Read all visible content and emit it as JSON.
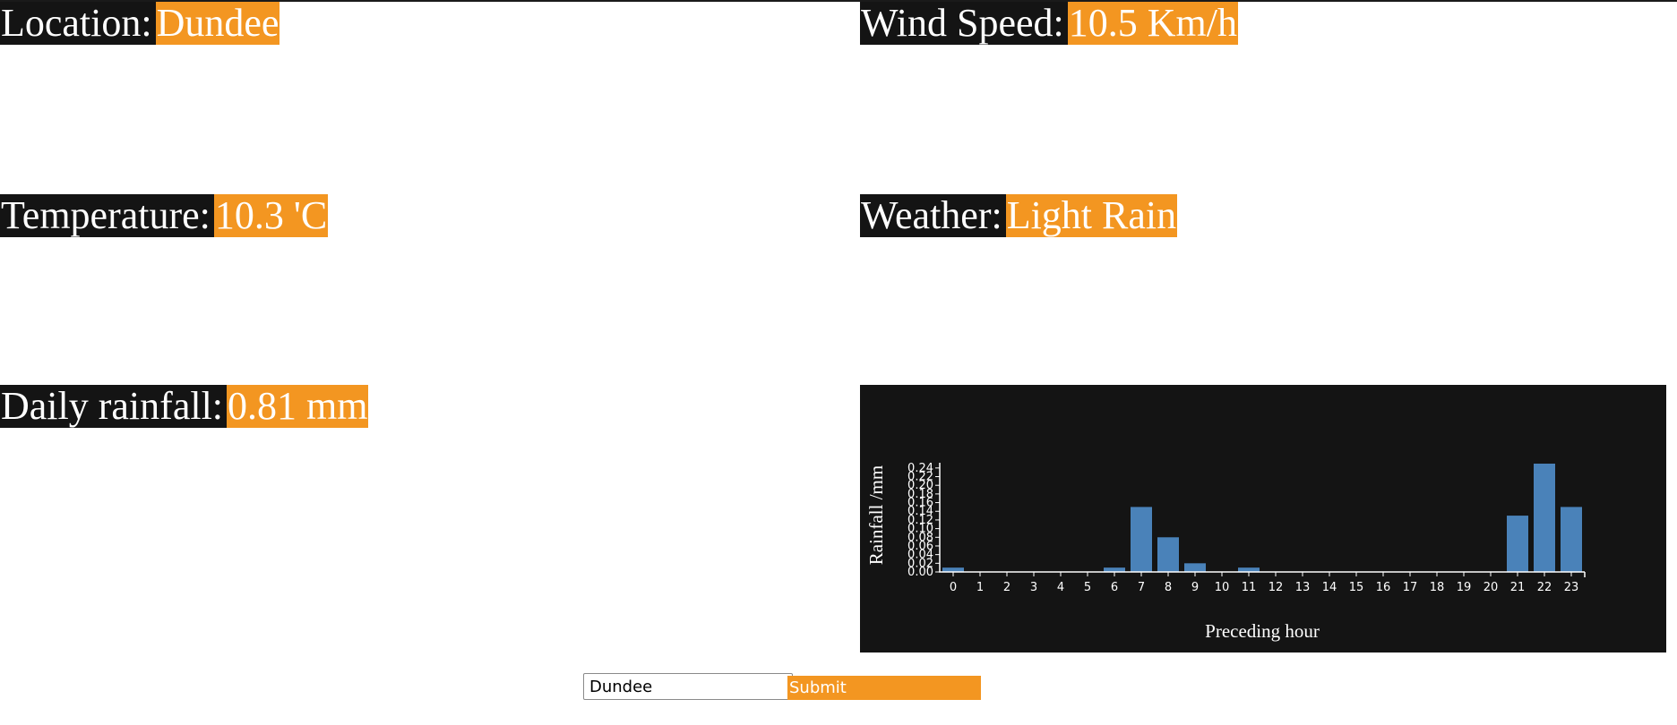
{
  "stats": {
    "location": {
      "label": "Location: ",
      "value": "Dundee"
    },
    "wind_speed": {
      "label": "Wind Speed: ",
      "value": "10.5 Km/h"
    },
    "temperature": {
      "label": "Temperature: ",
      "value": "10.3 'C"
    },
    "weather": {
      "label": "Weather: ",
      "value": "Light Rain"
    },
    "daily_rainfall": {
      "label": "Daily rainfall: ",
      "value": "0.81 mm"
    }
  },
  "colors": {
    "label_bg": "#141414",
    "value_bg": "#f39621",
    "bar": "#4a82b9",
    "panel_bg": "#141414"
  },
  "chart_data": {
    "type": "bar",
    "xlabel": "Preceding hour",
    "ylabel": "Rainfall /mm",
    "categories": [
      "0",
      "1",
      "2",
      "3",
      "4",
      "5",
      "6",
      "7",
      "8",
      "9",
      "10",
      "11",
      "12",
      "13",
      "14",
      "15",
      "16",
      "17",
      "18",
      "19",
      "20",
      "21",
      "22",
      "23"
    ],
    "values": [
      0.01,
      0,
      0,
      0,
      0,
      0,
      0.01,
      0.15,
      0.08,
      0.02,
      0,
      0.01,
      0,
      0,
      0,
      0,
      0,
      0,
      0,
      0,
      0,
      0.13,
      0.25,
      0.15
    ],
    "y_ticks": [
      "0.00",
      "0.02",
      "0.04",
      "0.06",
      "0.08",
      "0.10",
      "0.12",
      "0.14",
      "0.16",
      "0.18",
      "0.20",
      "0.22",
      "0.24"
    ],
    "ylim": [
      0,
      0.25
    ],
    "grid": false
  },
  "form": {
    "city_value": "Dundee",
    "submit_label": "Submit"
  }
}
